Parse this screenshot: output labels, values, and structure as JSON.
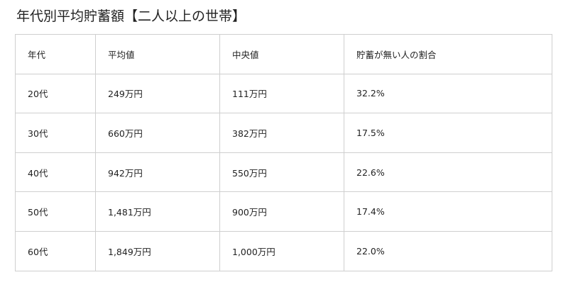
{
  "title": "年代別平均貯蓄額【二人以上の世帯】",
  "table": {
    "headers": [
      "年代",
      "平均値",
      "中央値",
      "貯蓄が無い人の割合"
    ],
    "rows": [
      {
        "age": "20代",
        "average": "249万円",
        "median": "111万円",
        "no_savings_rate": "32.2%"
      },
      {
        "age": "30代",
        "average": "660万円",
        "median": "382万円",
        "no_savings_rate": "17.5%"
      },
      {
        "age": "40代",
        "average": "942万円",
        "median": "550万円",
        "no_savings_rate": "22.6%"
      },
      {
        "age": "50代",
        "average": "1,481万円",
        "median": "900万円",
        "no_savings_rate": "17.4%"
      },
      {
        "age": "60代",
        "average": "1,849万円",
        "median": "1,000万円",
        "no_savings_rate": "22.0%"
      }
    ]
  },
  "colors": {
    "text": "#222222",
    "border": "#cfcfcf",
    "background": "#ffffff"
  }
}
